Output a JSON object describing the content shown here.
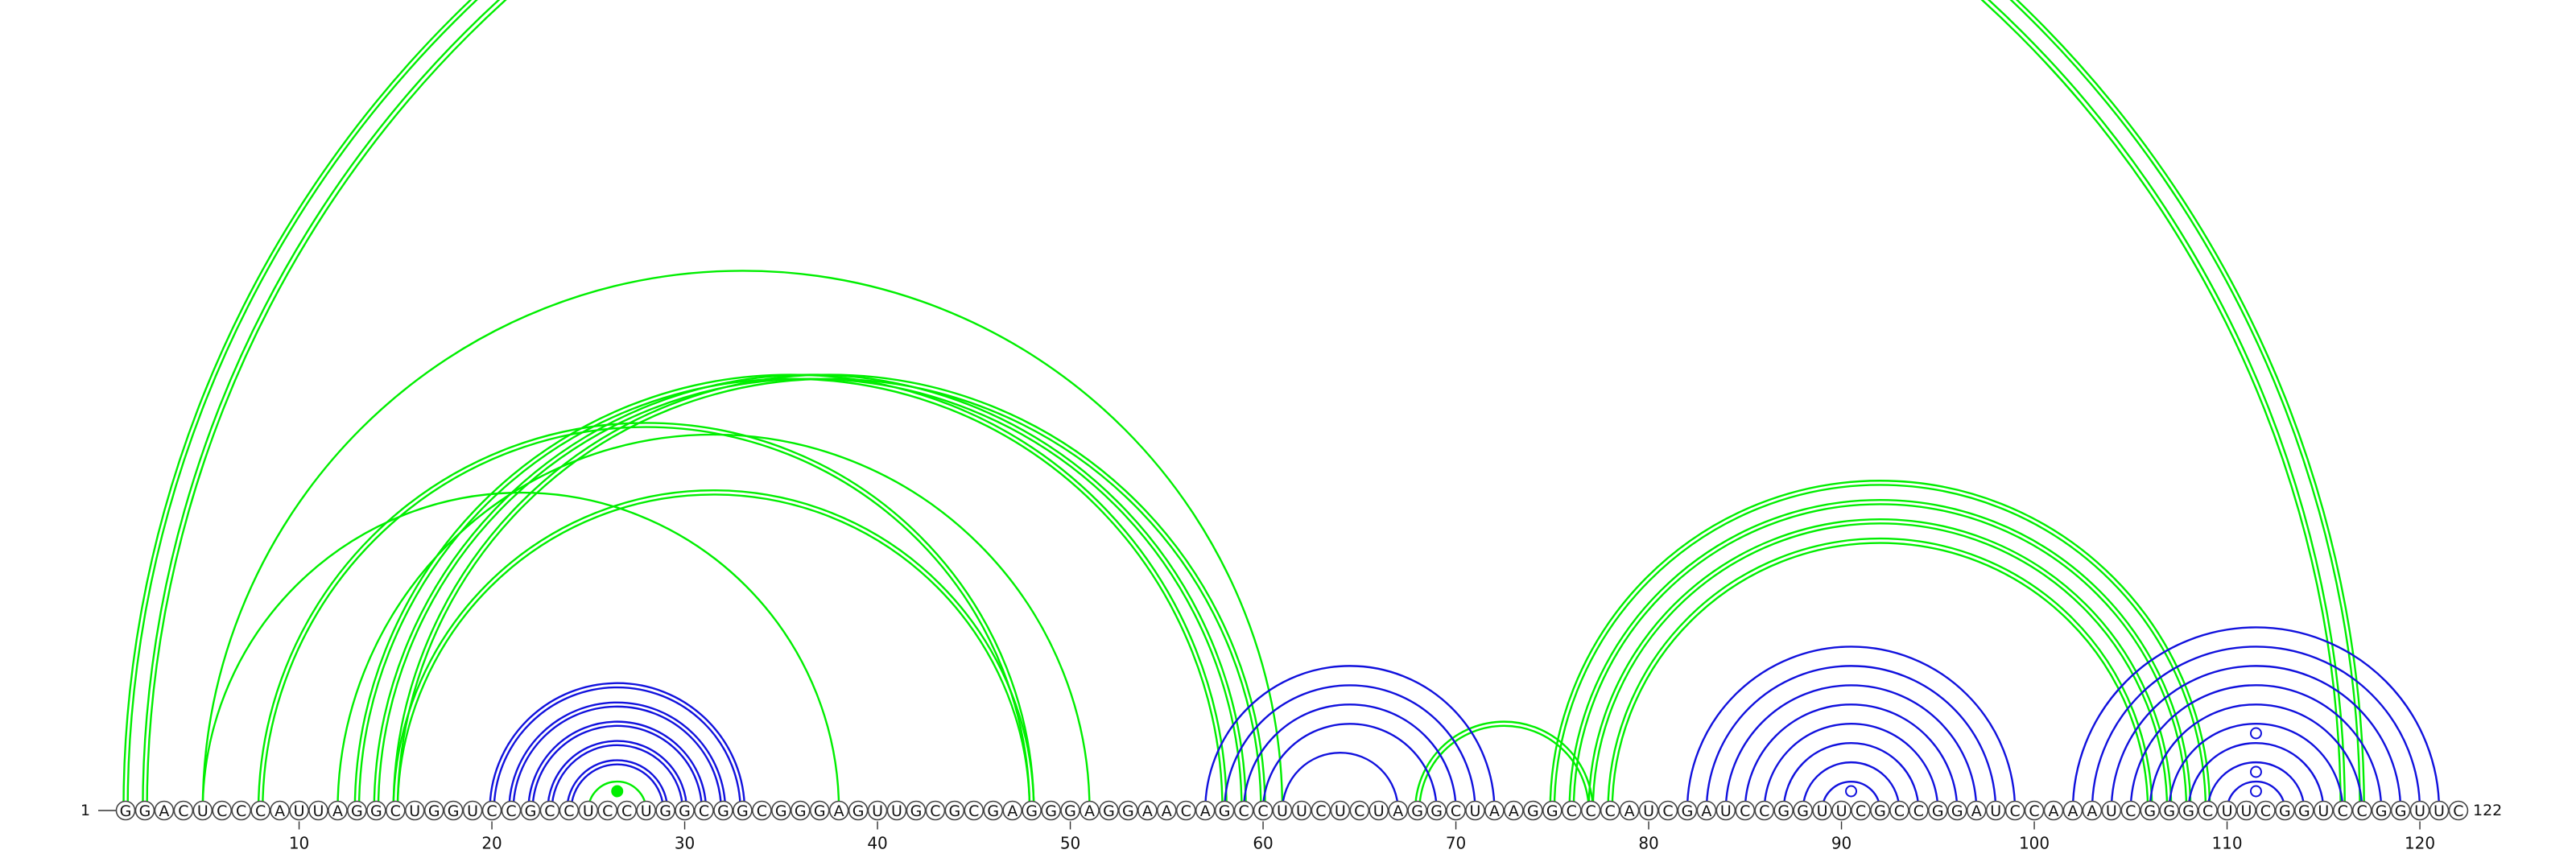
{
  "sequence": "GGACUCCCAUUAGGCUGGUCCGCCUCCUGGCGGCGGGAGUUGCGCGAGGGAGGAACAGCCUUCUCUAGGCUAAGGCCCAUCGAUCCGGUUCGCCGGAUCCAAAUCGGGCUUCGGUCCGGUUC",
  "labels": {
    "start": "1",
    "end": "122"
  },
  "ticks": [
    10,
    20,
    30,
    40,
    50,
    60,
    70,
    80,
    90,
    100,
    110,
    120
  ],
  "colors": {
    "green": "#00ee00",
    "blue": "#1111dd",
    "backbone": "#333333"
  },
  "groups": [
    {
      "color": "green",
      "strands": 2,
      "pairs": [
        [
          1,
          117
        ],
        [
          2,
          116
        ]
      ]
    },
    {
      "color": "green",
      "strands": 1,
      "pairs": [
        [
          5,
          61
        ]
      ]
    },
    {
      "color": "green",
      "strands": 1,
      "pairs": [
        [
          5,
          38
        ]
      ]
    },
    {
      "color": "green",
      "strands": 2,
      "pairs": [
        [
          8,
          48
        ]
      ]
    },
    {
      "color": "green",
      "strands": 1,
      "pairs": [
        [
          12,
          51
        ]
      ]
    },
    {
      "color": "green",
      "strands": 2,
      "pairs": [
        [
          13,
          58
        ],
        [
          14,
          59
        ],
        [
          15,
          60
        ]
      ]
    },
    {
      "color": "green",
      "strands": 2,
      "pairs": [
        [
          15,
          48
        ]
      ]
    },
    {
      "color": "green",
      "strands": 2,
      "pairs": [
        [
          68,
          77
        ]
      ]
    },
    {
      "color": "green",
      "strands": 2,
      "pairs": [
        [
          75,
          109
        ],
        [
          76,
          108
        ],
        [
          77,
          107
        ],
        [
          78,
          106
        ]
      ]
    },
    {
      "color": "green",
      "strands": 1,
      "pairs": [
        [
          25,
          28
        ]
      ]
    },
    {
      "color": "blue",
      "strands": 2,
      "pairs": [
        [
          20,
          33
        ],
        [
          21,
          32
        ],
        [
          22,
          31
        ],
        [
          23,
          30
        ],
        [
          24,
          29
        ]
      ]
    },
    {
      "color": "blue",
      "strands": 1,
      "pairs": [
        [
          57,
          72
        ],
        [
          58,
          71
        ],
        [
          59,
          70
        ],
        [
          60,
          69
        ],
        [
          61,
          67
        ]
      ]
    },
    {
      "color": "blue",
      "strands": 1,
      "pairs": [
        [
          82,
          99
        ],
        [
          83,
          98
        ],
        [
          84,
          97
        ],
        [
          85,
          96
        ],
        [
          86,
          95
        ],
        [
          87,
          94
        ],
        [
          88,
          93
        ],
        [
          89,
          92
        ]
      ]
    },
    {
      "color": "blue",
      "strands": 1,
      "pairs": [
        [
          102,
          121
        ],
        [
          103,
          120
        ],
        [
          104,
          119
        ],
        [
          105,
          118
        ],
        [
          106,
          117
        ],
        [
          107,
          116
        ],
        [
          108,
          115
        ],
        [
          109,
          114
        ],
        [
          110,
          113
        ]
      ]
    }
  ],
  "markers": [
    {
      "pos": 26.5,
      "level": 1,
      "color": "green",
      "filled": true
    },
    {
      "pos": 90.5,
      "level": 1,
      "color": "blue",
      "filled": false
    },
    {
      "pos": 111.5,
      "level": 1,
      "color": "blue",
      "filled": false
    },
    {
      "pos": 111.5,
      "level": 2,
      "color": "blue",
      "filled": false
    },
    {
      "pos": 111.5,
      "level": 4,
      "color": "blue",
      "filled": false
    }
  ]
}
